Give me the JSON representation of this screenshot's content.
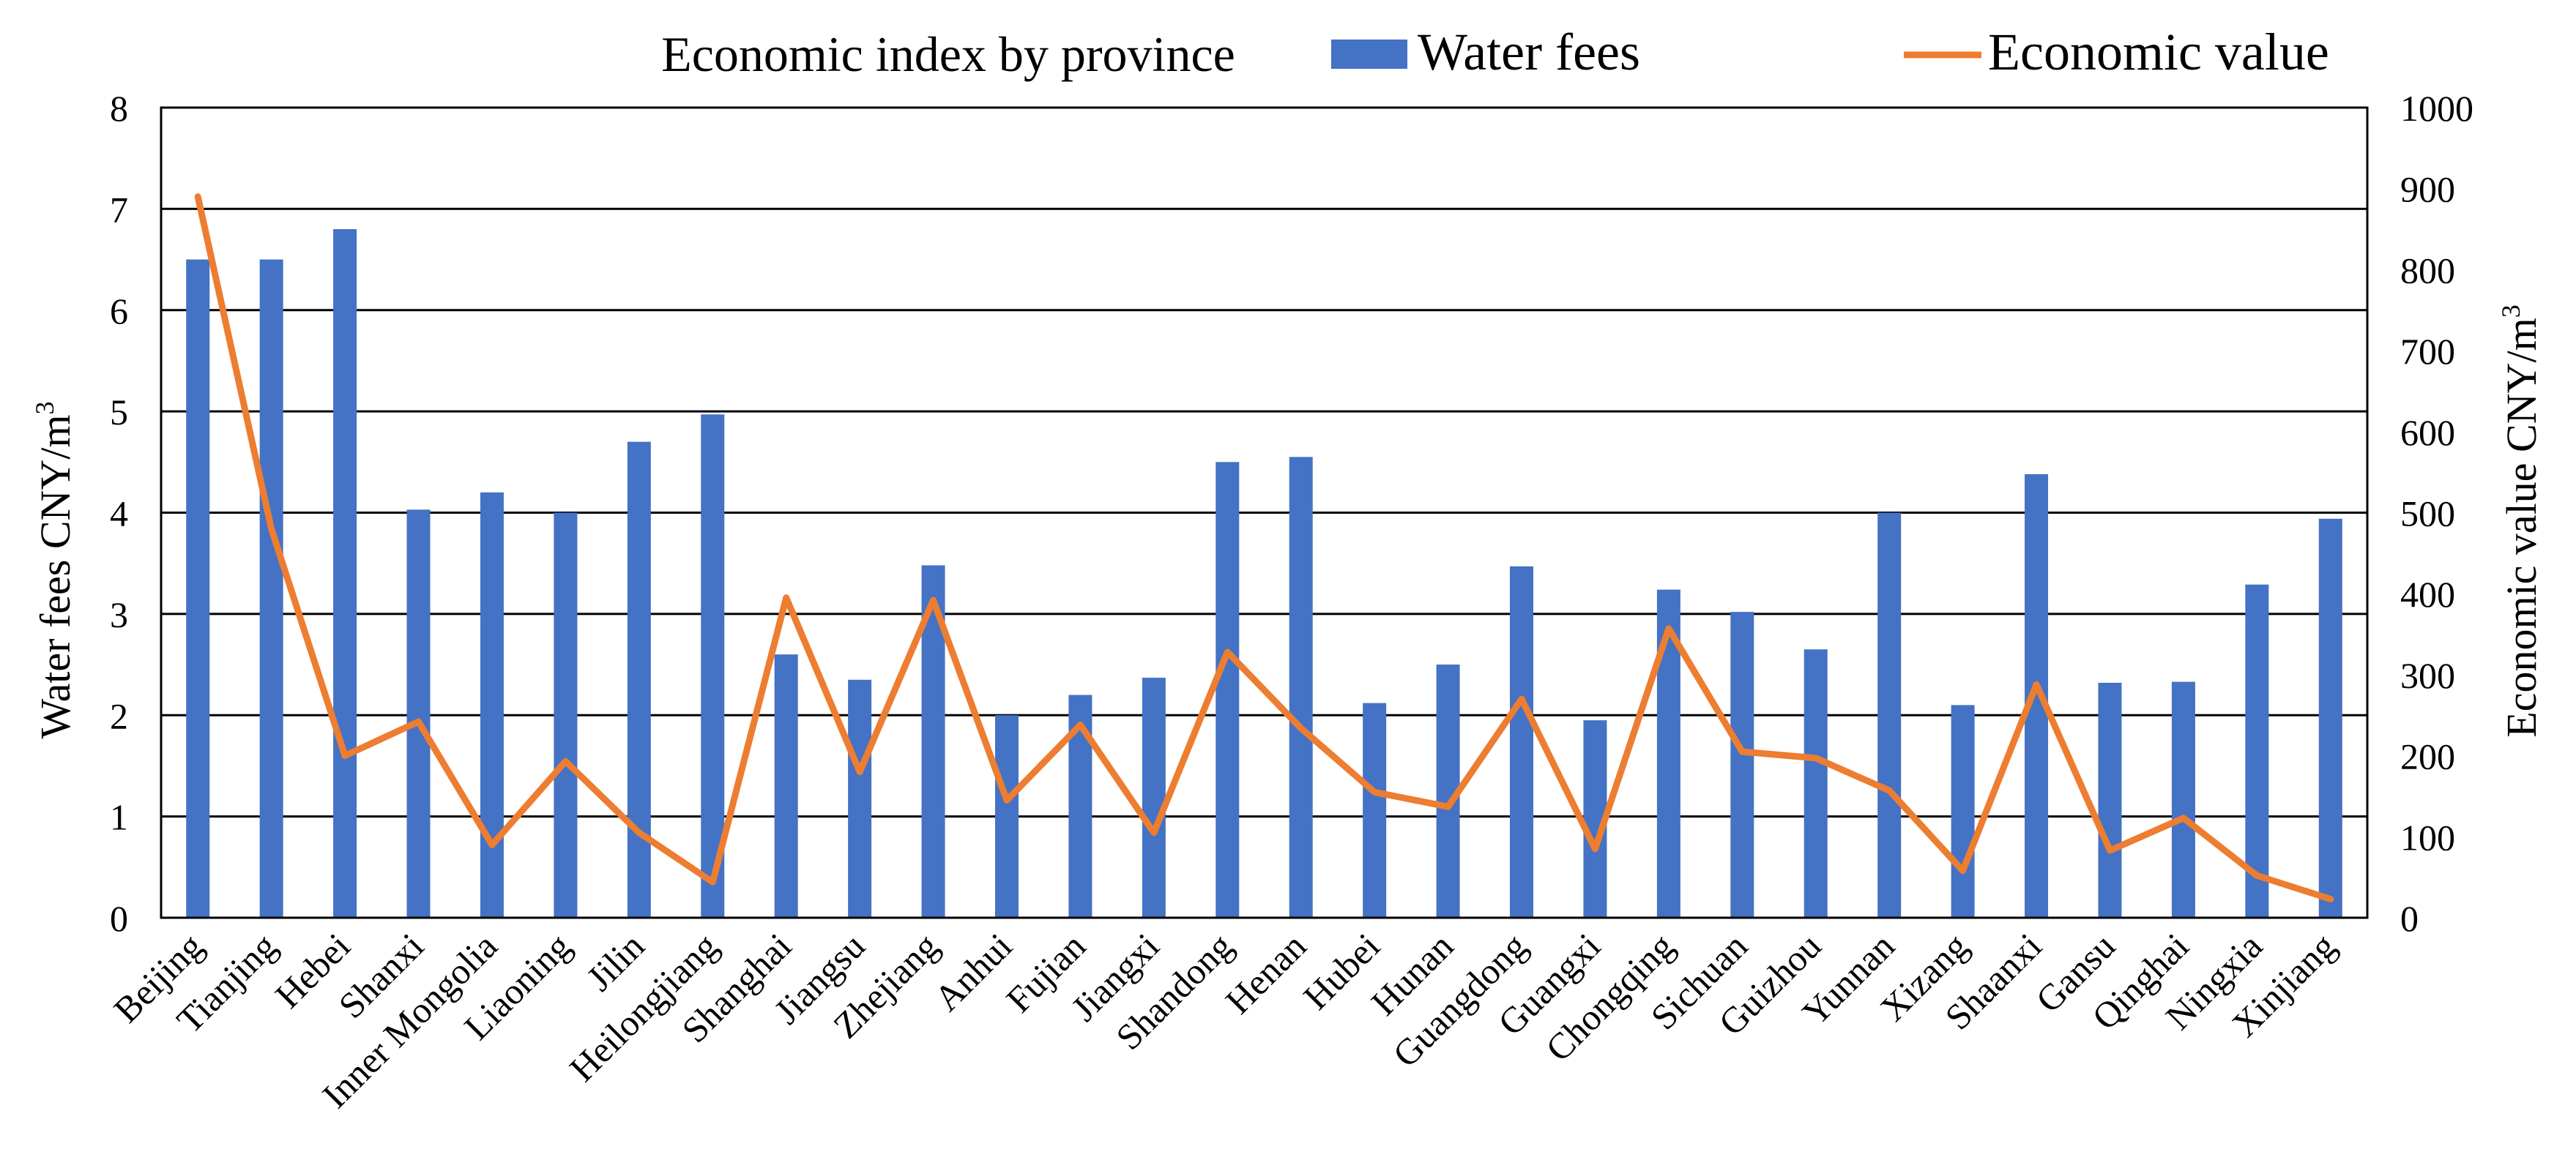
{
  "chart_data": {
    "type": "bar+line",
    "title": "Economic index by province",
    "categories": [
      "Beijing",
      "Tianjing",
      "Hebei",
      "Shanxi",
      "Inner Mongolia",
      "Liaoning",
      "Jilin",
      "Heilongjiang",
      "Shanghai",
      "Jiangsu",
      "Zhejiang",
      "Anhui",
      "Fujian",
      "Jiangxi",
      "Shandong",
      "Henan",
      "Hubei",
      "Hunan",
      "Guangdong",
      "Guangxi",
      "Chongqing",
      "Sichuan",
      "Guizhou",
      "Yunnan",
      "Xizang",
      "Shaanxi",
      "Gansu",
      "Qinghai",
      "Ningxia",
      "Xinjiang"
    ],
    "series": [
      {
        "name": "Water fees",
        "type": "bar",
        "axis": "left",
        "color": "#4472C4",
        "values": [
          6.5,
          6.5,
          6.8,
          4.03,
          4.2,
          4.0,
          4.7,
          4.97,
          2.6,
          2.35,
          3.48,
          2.0,
          2.2,
          2.37,
          4.5,
          4.55,
          2.12,
          2.5,
          3.47,
          1.95,
          3.24,
          3.02,
          2.65,
          4.0,
          2.1,
          4.38,
          2.32,
          2.33,
          3.29,
          3.94
        ]
      },
      {
        "name": "Economic value",
        "type": "line",
        "axis": "right",
        "color": "#ED7D31",
        "values": [
          890,
          480,
          200,
          242,
          90,
          193,
          105,
          44,
          395,
          180,
          392,
          145,
          238,
          105,
          328,
          234,
          155,
          137,
          270,
          85,
          357,
          205,
          197,
          157,
          58,
          288,
          83,
          123,
          52,
          23
        ]
      }
    ],
    "left_axis": {
      "label": "Water fees CNY/m",
      "label_superscript": "3",
      "min": 0,
      "max": 8,
      "ticks": [
        "0",
        "1",
        "2",
        "3",
        "4",
        "5",
        "6",
        "7",
        "8"
      ]
    },
    "right_axis": {
      "label": "Economic value CNY/m",
      "label_superscript": "3",
      "min": 0,
      "max": 1000,
      "ticks": [
        "0",
        "100",
        "200",
        "300",
        "400",
        "500",
        "600",
        "700",
        "800",
        "900",
        "1000"
      ]
    },
    "legend": {
      "placement": "top",
      "items": [
        "Water fees",
        "Economic value"
      ]
    },
    "grid": true
  }
}
